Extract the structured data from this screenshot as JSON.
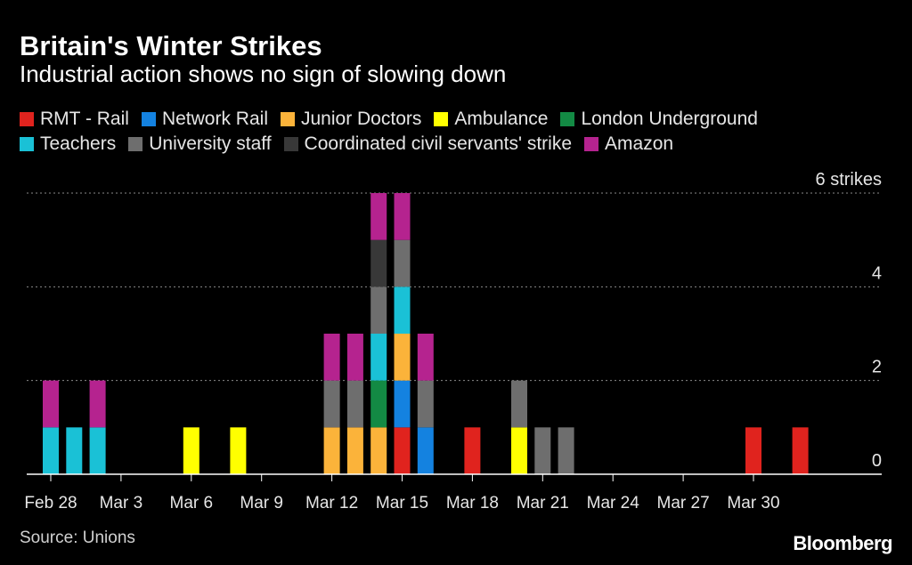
{
  "header": {
    "title": "Britain's Winter Strikes",
    "subtitle": "Industrial action shows no sign of slowing down"
  },
  "footer": {
    "source": "Source: Unions",
    "logo_text": "Bloomberg"
  },
  "chart_data": {
    "type": "bar",
    "stacked": true,
    "title": "Britain's Winter Strikes",
    "subtitle": "Industrial action shows no sign of slowing down",
    "xlabel": "",
    "ylabel": "",
    "ylim": [
      0,
      6
    ],
    "y_ticks": [
      {
        "value": 0,
        "label": "0"
      },
      {
        "value": 2,
        "label": "2"
      },
      {
        "value": 4,
        "label": "4"
      },
      {
        "value": 6,
        "label": "6 strikes"
      }
    ],
    "grid": true,
    "legend_position": "top-left",
    "x_start_day": 0,
    "x_end_day": 35,
    "x_ticks": [
      {
        "day": 0,
        "label": "Feb 28"
      },
      {
        "day": 3,
        "label": "Mar 3"
      },
      {
        "day": 6,
        "label": "Mar 6"
      },
      {
        "day": 9,
        "label": "Mar 9"
      },
      {
        "day": 12,
        "label": "Mar 12"
      },
      {
        "day": 15,
        "label": "Mar 15"
      },
      {
        "day": 18,
        "label": "Mar 18"
      },
      {
        "day": 21,
        "label": "Mar 21"
      },
      {
        "day": 24,
        "label": "Mar 24"
      },
      {
        "day": 27,
        "label": "Mar 27"
      },
      {
        "day": 30,
        "label": "Mar 30"
      }
    ],
    "legend_rows": [
      [
        "rmt",
        "network",
        "junior",
        "ambulance",
        "underground"
      ],
      [
        "teachers",
        "university",
        "civil",
        "amazon"
      ]
    ],
    "series": [
      {
        "key": "rmt",
        "name": "RMT - Rail",
        "color": "#e0231e",
        "days": [
          15,
          18,
          30,
          32
        ]
      },
      {
        "key": "network",
        "name": "Network Rail",
        "color": "#1482e0",
        "days": [
          15,
          16
        ]
      },
      {
        "key": "junior",
        "name": "Junior Doctors",
        "color": "#fbb33a",
        "days": [
          12,
          13,
          14,
          15
        ]
      },
      {
        "key": "ambulance",
        "name": "Ambulance",
        "color": "#ffff00",
        "days": [
          6,
          8,
          20
        ]
      },
      {
        "key": "underground",
        "name": "London Underground",
        "color": "#138a44",
        "days": [
          14
        ]
      },
      {
        "key": "teachers",
        "name": "Teachers",
        "color": "#1ac1d6",
        "days": [
          0,
          1,
          2,
          14,
          15
        ]
      },
      {
        "key": "university",
        "name": "University staff",
        "color": "#6e6e6e",
        "days": [
          12,
          13,
          14,
          15,
          16,
          20,
          21,
          22
        ]
      },
      {
        "key": "civil",
        "name": "Coordinated civil servants' strike",
        "color": "#383838",
        "days": [
          14
        ]
      },
      {
        "key": "amazon",
        "name": "Amazon",
        "color": "#b5238f",
        "days": [
          0,
          2,
          12,
          13,
          14,
          15,
          16
        ]
      }
    ]
  }
}
